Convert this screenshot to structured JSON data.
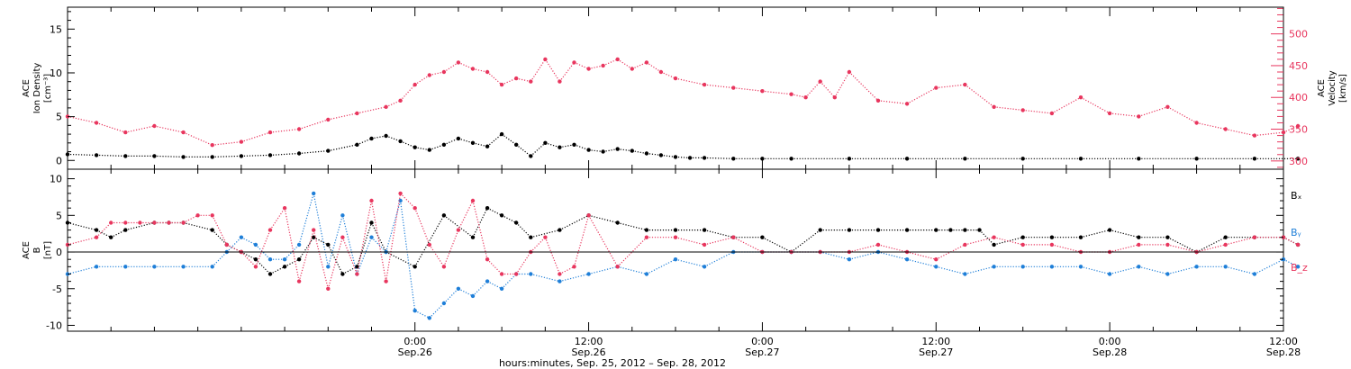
{
  "colors": {
    "black": "#000000",
    "pink": "#e8365e",
    "blue": "#1f7fd8"
  },
  "chart_data": [
    {
      "type": "scatter",
      "panel": "top",
      "ylabel": [
        "ACE",
        "Ion Density",
        "[cm⁻³]"
      ],
      "y2label": [
        "ACE",
        "Velocity",
        "[km/s]"
      ],
      "ylim": [
        -1,
        17.5
      ],
      "y2lim": [
        287,
        542
      ],
      "yticks": [
        0,
        5,
        10,
        15
      ],
      "y2ticks": [
        300,
        350,
        400,
        450,
        500
      ],
      "xlim": [
        0,
        84
      ],
      "series": [
        {
          "name": "density",
          "color": "black",
          "x": [
            0,
            2,
            4,
            6,
            8,
            10,
            12,
            14,
            16,
            18,
            20,
            21,
            22,
            23,
            24,
            25,
            26,
            27,
            28,
            29,
            30,
            31,
            32,
            33,
            34,
            35,
            36,
            37,
            38,
            39,
            40,
            41,
            42,
            43,
            44,
            46,
            48,
            50,
            54,
            58,
            62,
            66,
            70,
            74,
            78,
            82,
            85
          ],
          "y": [
            0.7,
            0.6,
            0.5,
            0.5,
            0.4,
            0.4,
            0.5,
            0.6,
            0.8,
            1.1,
            1.8,
            2.5,
            2.8,
            2.2,
            1.5,
            1.2,
            1.8,
            2.5,
            2.0,
            1.6,
            3.0,
            1.8,
            0.5,
            2.0,
            1.5,
            1.8,
            1.2,
            1.0,
            1.3,
            1.1,
            0.8,
            0.6,
            0.4,
            0.3,
            0.3,
            0.2,
            0.2,
            0.2,
            0.2,
            0.2,
            0.2,
            0.2,
            0.2,
            0.2,
            0.2,
            0.2,
            0.2
          ]
        },
        {
          "name": "velocity",
          "color": "pink",
          "x": [
            0,
            2,
            4,
            6,
            8,
            10,
            12,
            14,
            16,
            18,
            20,
            22,
            23,
            24,
            25,
            26,
            27,
            28,
            29,
            30,
            31,
            32,
            33,
            34,
            35,
            36,
            37,
            38,
            39,
            40,
            41,
            42,
            44,
            46,
            48,
            50,
            51,
            52,
            53,
            54,
            56,
            58,
            60,
            62,
            64,
            66,
            68,
            70,
            72,
            74,
            76,
            78,
            80,
            82,
            84,
            85
          ],
          "y": [
            370,
            360,
            345,
            355,
            345,
            325,
            330,
            345,
            350,
            365,
            375,
            385,
            395,
            420,
            435,
            440,
            455,
            445,
            440,
            420,
            430,
            425,
            460,
            425,
            455,
            445,
            450,
            460,
            445,
            455,
            440,
            430,
            420,
            415,
            410,
            405,
            400,
            425,
            400,
            440,
            395,
            390,
            415,
            420,
            385,
            380,
            375,
            400,
            375,
            370,
            385,
            360,
            350,
            340,
            345,
            355
          ]
        }
      ]
    },
    {
      "type": "scatter",
      "panel": "bottom",
      "ylabel": [
        "ACE",
        "B",
        "[nT]"
      ],
      "ylim": [
        -10.8,
        11.3
      ],
      "yticks": [
        -10,
        -5,
        0,
        5,
        10
      ],
      "zero_line": true,
      "xlim": [
        0,
        84
      ],
      "legend_position": "right",
      "series": [
        {
          "name": "Bx",
          "color": "black",
          "x": [
            0,
            2,
            3,
            4,
            6,
            7,
            8,
            10,
            11,
            12,
            13,
            14,
            15,
            16,
            17,
            18,
            19,
            20,
            21,
            22,
            24,
            26,
            28,
            29,
            30,
            31,
            32,
            34,
            36,
            38,
            40,
            42,
            44,
            46,
            48,
            50,
            52,
            54,
            56,
            58,
            60,
            61,
            62,
            63,
            64,
            66,
            68,
            70,
            72,
            74,
            76,
            78,
            80,
            82,
            84,
            85
          ],
          "y": [
            4,
            3,
            2,
            3,
            4,
            4,
            4,
            3,
            1,
            0,
            -1,
            -3,
            -2,
            -1,
            2,
            1,
            -3,
            -2,
            4,
            0,
            -2,
            5,
            2,
            6,
            5,
            4,
            2,
            3,
            5,
            4,
            3,
            3,
            3,
            2,
            2,
            0,
            3,
            3,
            3,
            3,
            3,
            3,
            3,
            3,
            1,
            2,
            2,
            2,
            3,
            2,
            2,
            0,
            2,
            2,
            2,
            1
          ]
        },
        {
          "name": "By",
          "color": "blue",
          "x": [
            0,
            2,
            4,
            6,
            8,
            10,
            11,
            12,
            13,
            14,
            15,
            16,
            17,
            18,
            19,
            20,
            21,
            22,
            23,
            24,
            25,
            26,
            27,
            28,
            29,
            30,
            31,
            32,
            34,
            36,
            38,
            40,
            42,
            44,
            46,
            48,
            50,
            52,
            54,
            56,
            58,
            60,
            62,
            64,
            66,
            68,
            70,
            72,
            74,
            76,
            78,
            80,
            82,
            84,
            85
          ],
          "y": [
            -3,
            -2,
            -2,
            -2,
            -2,
            -2,
            0,
            2,
            1,
            -1,
            -1,
            1,
            8,
            -2,
            5,
            -3,
            2,
            0,
            7,
            -8,
            -9,
            -7,
            -5,
            -6,
            -4,
            -5,
            -3,
            -3,
            -4,
            -3,
            -2,
            -3,
            -1,
            -2,
            0,
            0,
            0,
            0,
            -1,
            0,
            -1,
            -2,
            -3,
            -2,
            -2,
            -2,
            -2,
            -3,
            -2,
            -3,
            -2,
            -2,
            -3,
            -1,
            -2
          ]
        },
        {
          "name": "Bz",
          "color": "pink",
          "x": [
            0,
            2,
            3,
            4,
            5,
            6,
            7,
            8,
            9,
            10,
            11,
            12,
            13,
            14,
            15,
            16,
            17,
            18,
            19,
            20,
            21,
            22,
            23,
            24,
            25,
            26,
            27,
            28,
            29,
            30,
            31,
            32,
            33,
            34,
            35,
            36,
            38,
            40,
            42,
            44,
            46,
            48,
            50,
            52,
            54,
            56,
            58,
            60,
            62,
            64,
            66,
            68,
            70,
            72,
            74,
            76,
            78,
            80,
            82,
            84,
            85
          ],
          "y": [
            1,
            2,
            4,
            4,
            4,
            4,
            4,
            4,
            5,
            5,
            1,
            0,
            -2,
            3,
            6,
            -4,
            3,
            -5,
            2,
            -3,
            7,
            -4,
            8,
            6,
            1,
            -2,
            3,
            7,
            -1,
            -3,
            -3,
            0,
            2,
            -3,
            -2,
            5,
            -2,
            2,
            2,
            1,
            2,
            0,
            0,
            0,
            0,
            1,
            0,
            -1,
            1,
            2,
            1,
            1,
            0,
            0,
            1,
            1,
            0,
            1,
            2,
            2,
            1
          ]
        }
      ]
    }
  ],
  "legend": {
    "bx": "Bₓ",
    "by": "Bᵧ",
    "bz": "B_z"
  },
  "x_axis": {
    "ticks": [
      {
        "x": 24,
        "time": "0:00",
        "date": "Sep.26"
      },
      {
        "x": 36,
        "time": "12:00",
        "date": "Sep.26"
      },
      {
        "x": 48,
        "time": "0:00",
        "date": "Sep.27"
      },
      {
        "x": 60,
        "time": "12:00",
        "date": "Sep.27"
      },
      {
        "x": 72,
        "time": "0:00",
        "date": "Sep.28"
      },
      {
        "x": 84,
        "time": "12:00",
        "date": "Sep.28"
      }
    ],
    "minor_step": 3,
    "label": "hours:minutes, Sep. 25, 2012 – Sep. 28, 2012"
  }
}
